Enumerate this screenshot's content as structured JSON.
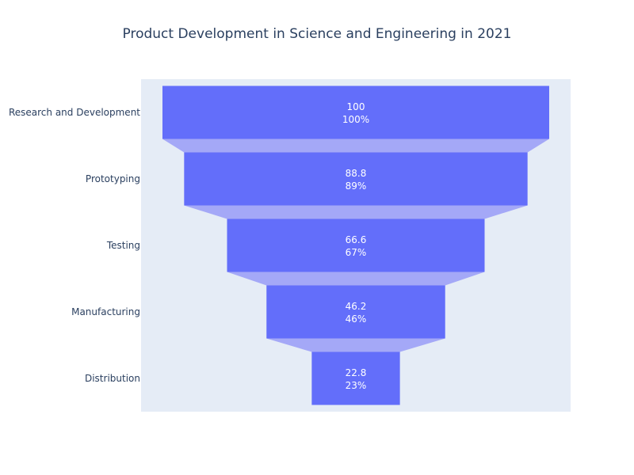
{
  "chart_data": {
    "type": "funnel",
    "title": "Product Development in Science and Engineering in 2021",
    "categories": [
      "Research and Development",
      "Prototyping",
      "Testing",
      "Manufacturing",
      "Distribution"
    ],
    "values": [
      100,
      88.8,
      66.6,
      46.2,
      22.8
    ],
    "percent_labels": [
      "100%",
      "89%",
      "67%",
      "46%",
      "23%"
    ],
    "colors": {
      "bar": "#636efa",
      "connector": "#a4a8f7",
      "plot_background": "#e5ecf6",
      "text_inside": "#ffffff",
      "text_axis": "#2a3f5f"
    }
  }
}
